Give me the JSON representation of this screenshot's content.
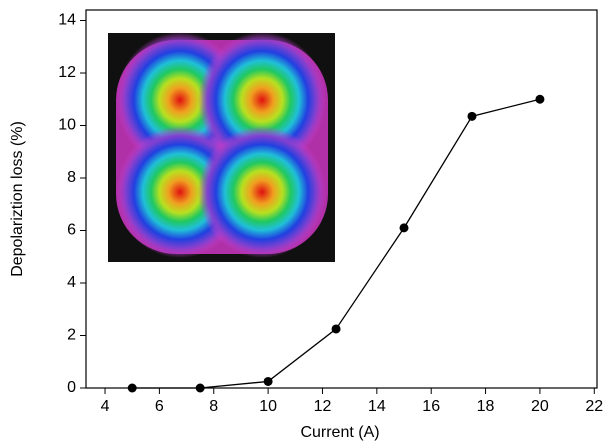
{
  "chart_data": {
    "type": "line",
    "x_label": "Current (A)",
    "y_label": "Depolariztion loss (%)",
    "x": [
      5,
      7.5,
      10,
      12.5,
      15,
      17.5,
      20
    ],
    "values": [
      0,
      0,
      0.25,
      2.25,
      6.1,
      10.35,
      11.0
    ],
    "color": "#000000",
    "xlim": [
      3.3,
      22.1
    ],
    "xticks": [
      4,
      6,
      8,
      10,
      12,
      14,
      16,
      18,
      20,
      22
    ],
    "ylim": [
      0,
      14.4
    ],
    "yticks": [
      0,
      2,
      4,
      6,
      8,
      10,
      12,
      14
    ],
    "grid": false
  }
}
